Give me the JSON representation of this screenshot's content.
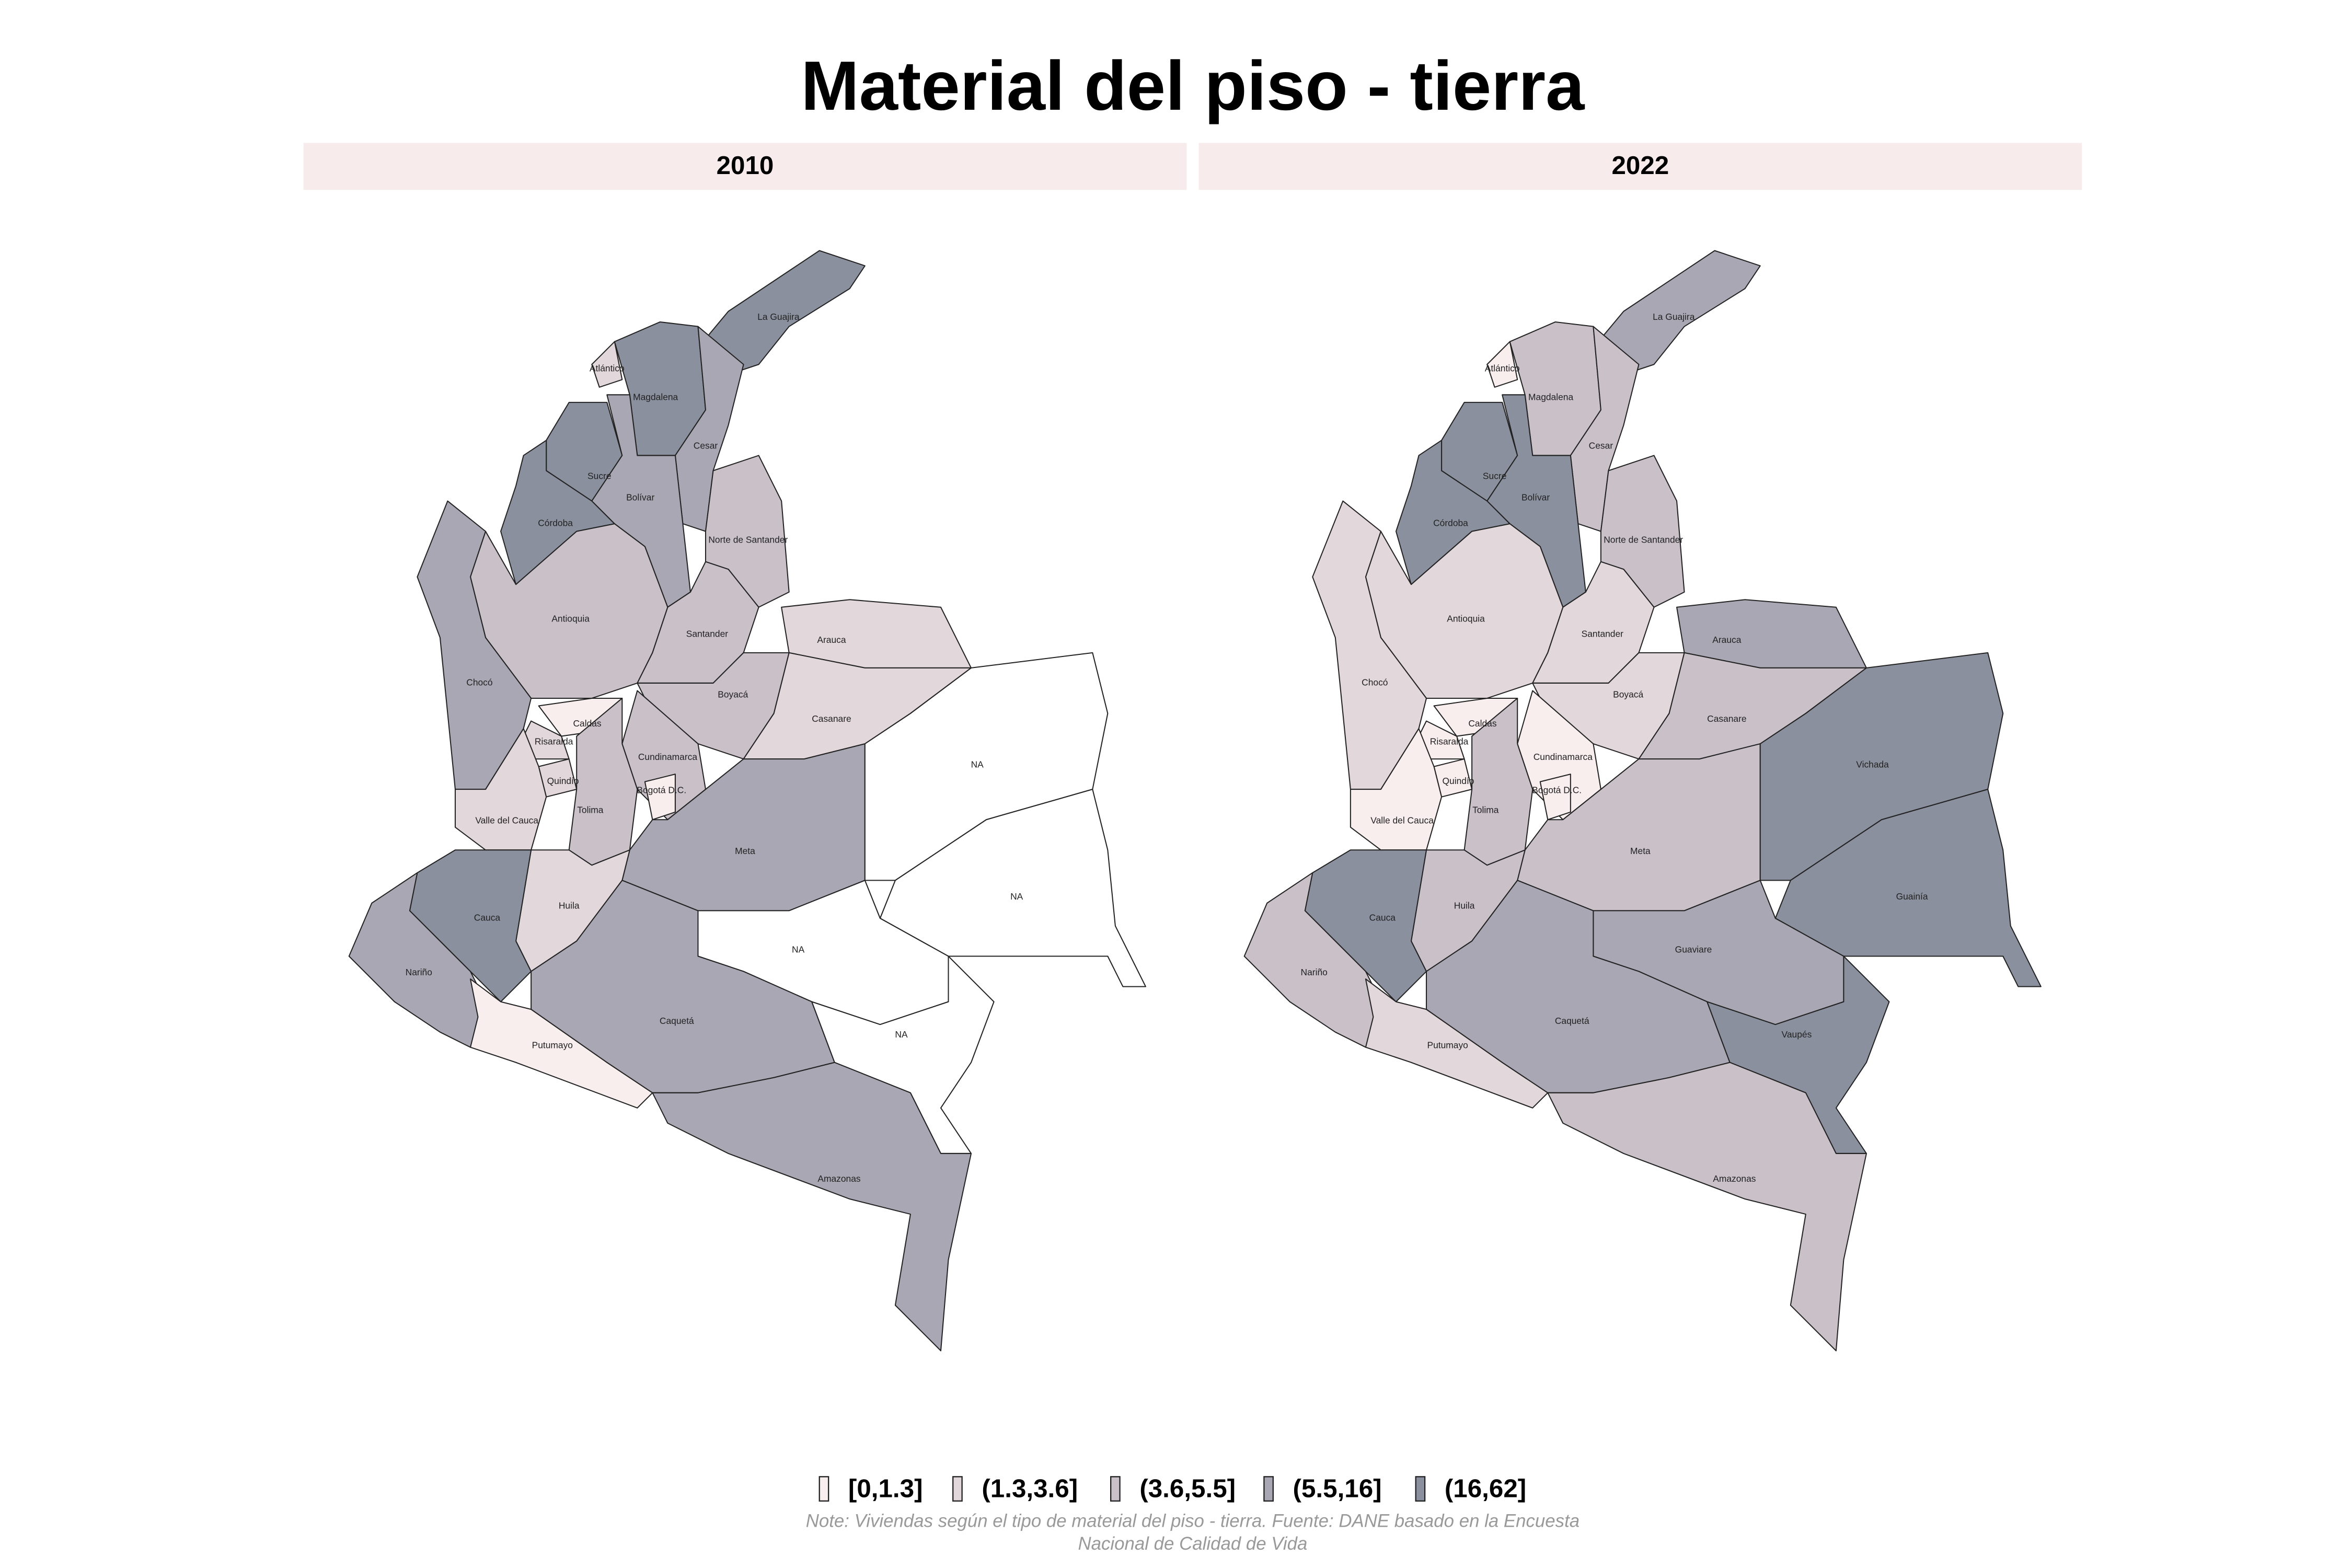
{
  "title": "Material del piso - tierra",
  "na_color": "#ffffff",
  "legend": [
    {
      "label": "[0,1.3]",
      "color": "#f9eeee"
    },
    {
      "label": "(1.3,3.6]",
      "color": "#e2d7db"
    },
    {
      "label": "(3.6,5.5]",
      "color": "#c9c0c8"
    },
    {
      "label": "(5.5,16]",
      "color": "#a9a7b3"
    },
    {
      "label": "(16,62]",
      "color": "#8a909e"
    }
  ],
  "panels": [
    {
      "title": "2010",
      "regions": [
        {
          "label": "La Guajira",
          "class": "(16,62]"
        },
        {
          "label": "Atlántico",
          "class": "(1.3,3.6]"
        },
        {
          "label": "Magdalena",
          "class": "(16,62]"
        },
        {
          "label": "Cesar",
          "class": "(5.5,16]"
        },
        {
          "label": "Sucre",
          "class": "(16,62]"
        },
        {
          "label": "Bolívar",
          "class": "(5.5,16]"
        },
        {
          "label": "Córdoba",
          "class": "(16,62]"
        },
        {
          "label": "Norte de Santander",
          "class": "(3.6,5.5]"
        },
        {
          "label": "Antioquia",
          "class": "(3.6,5.5]"
        },
        {
          "label": "Santander",
          "class": "(3.6,5.5]"
        },
        {
          "label": "Chocó",
          "class": "(5.5,16]"
        },
        {
          "label": "Arauca",
          "class": "(1.3,3.6]"
        },
        {
          "label": "Boyacá",
          "class": "(3.6,5.5]"
        },
        {
          "label": "Casanare",
          "class": "(1.3,3.6]"
        },
        {
          "label": "Caldas",
          "class": "[0,1.3]"
        },
        {
          "label": "Risaralda",
          "class": "(1.3,3.6]"
        },
        {
          "label": "Quindío",
          "class": "(1.3,3.6]"
        },
        {
          "label": "Cundinamarca",
          "class": "(3.6,5.5]"
        },
        {
          "label": "Bogotá D.C.",
          "class": "[0,1.3]"
        },
        {
          "label": "Tolima",
          "class": "(3.6,5.5]"
        },
        {
          "label": "Valle del Cauca",
          "class": "(1.3,3.6]"
        },
        {
          "label": "Meta",
          "class": "(5.5,16]"
        },
        {
          "label": "NA",
          "class": null
        },
        {
          "label": "NA",
          "class": null
        },
        {
          "label": "Huila",
          "class": "(1.3,3.6]"
        },
        {
          "label": "Cauca",
          "class": "(16,62]"
        },
        {
          "label": "Nariño",
          "class": "(5.5,16]"
        },
        {
          "label": "Putumayo",
          "class": "[0,1.3]"
        },
        {
          "label": "NA",
          "class": null
        },
        {
          "label": "Caquetá",
          "class": "(5.5,16]"
        },
        {
          "label": "NA",
          "class": null
        },
        {
          "label": "Amazonas",
          "class": "(5.5,16]"
        }
      ]
    },
    {
      "title": "2022",
      "regions": [
        {
          "label": "La Guajira",
          "class": "(5.5,16]"
        },
        {
          "label": "Atlántico",
          "class": "[0,1.3]"
        },
        {
          "label": "Magdalena",
          "class": "(3.6,5.5]"
        },
        {
          "label": "Cesar",
          "class": "(3.6,5.5]"
        },
        {
          "label": "Sucre",
          "class": "(16,62]"
        },
        {
          "label": "Bolívar",
          "class": "(16,62]"
        },
        {
          "label": "Córdoba",
          "class": "(16,62]"
        },
        {
          "label": "Norte de Santander",
          "class": "(3.6,5.5]"
        },
        {
          "label": "Antioquia",
          "class": "(1.3,3.6]"
        },
        {
          "label": "Santander",
          "class": "(1.3,3.6]"
        },
        {
          "label": "Chocó",
          "class": "(1.3,3.6]"
        },
        {
          "label": "Arauca",
          "class": "(5.5,16]"
        },
        {
          "label": "Boyacá",
          "class": "(1.3,3.6]"
        },
        {
          "label": "Casanare",
          "class": "(3.6,5.5]"
        },
        {
          "label": "Caldas",
          "class": "[0,1.3]"
        },
        {
          "label": "Risaralda",
          "class": "[0,1.3]"
        },
        {
          "label": "Quindío",
          "class": "[0,1.3]"
        },
        {
          "label": "Cundinamarca",
          "class": "[0,1.3]"
        },
        {
          "label": "Bogotá D.C.",
          "class": "[0,1.3]"
        },
        {
          "label": "Tolima",
          "class": "(3.6,5.5]"
        },
        {
          "label": "Valle del Cauca",
          "class": "[0,1.3]"
        },
        {
          "label": "Meta",
          "class": "(3.6,5.5]"
        },
        {
          "label": "Vichada",
          "class": "(16,62]"
        },
        {
          "label": "Guainía",
          "class": "(16,62]"
        },
        {
          "label": "Huila",
          "class": "(3.6,5.5]"
        },
        {
          "label": "Cauca",
          "class": "(16,62]"
        },
        {
          "label": "Nariño",
          "class": "(3.6,5.5]"
        },
        {
          "label": "Putumayo",
          "class": "(1.3,3.6]"
        },
        {
          "label": "Guaviare",
          "class": "(5.5,16]"
        },
        {
          "label": "Caquetá",
          "class": "(5.5,16]"
        },
        {
          "label": "Vaupés",
          "class": "(16,62]"
        },
        {
          "label": "Amazonas",
          "class": "(3.6,5.5]"
        }
      ]
    }
  ],
  "note": [
    "Note: Viviendas según el tipo de material del piso - tierra. Fuente: DANE basado en la Encuesta",
    "Nacional de Calidad de Vida"
  ]
}
